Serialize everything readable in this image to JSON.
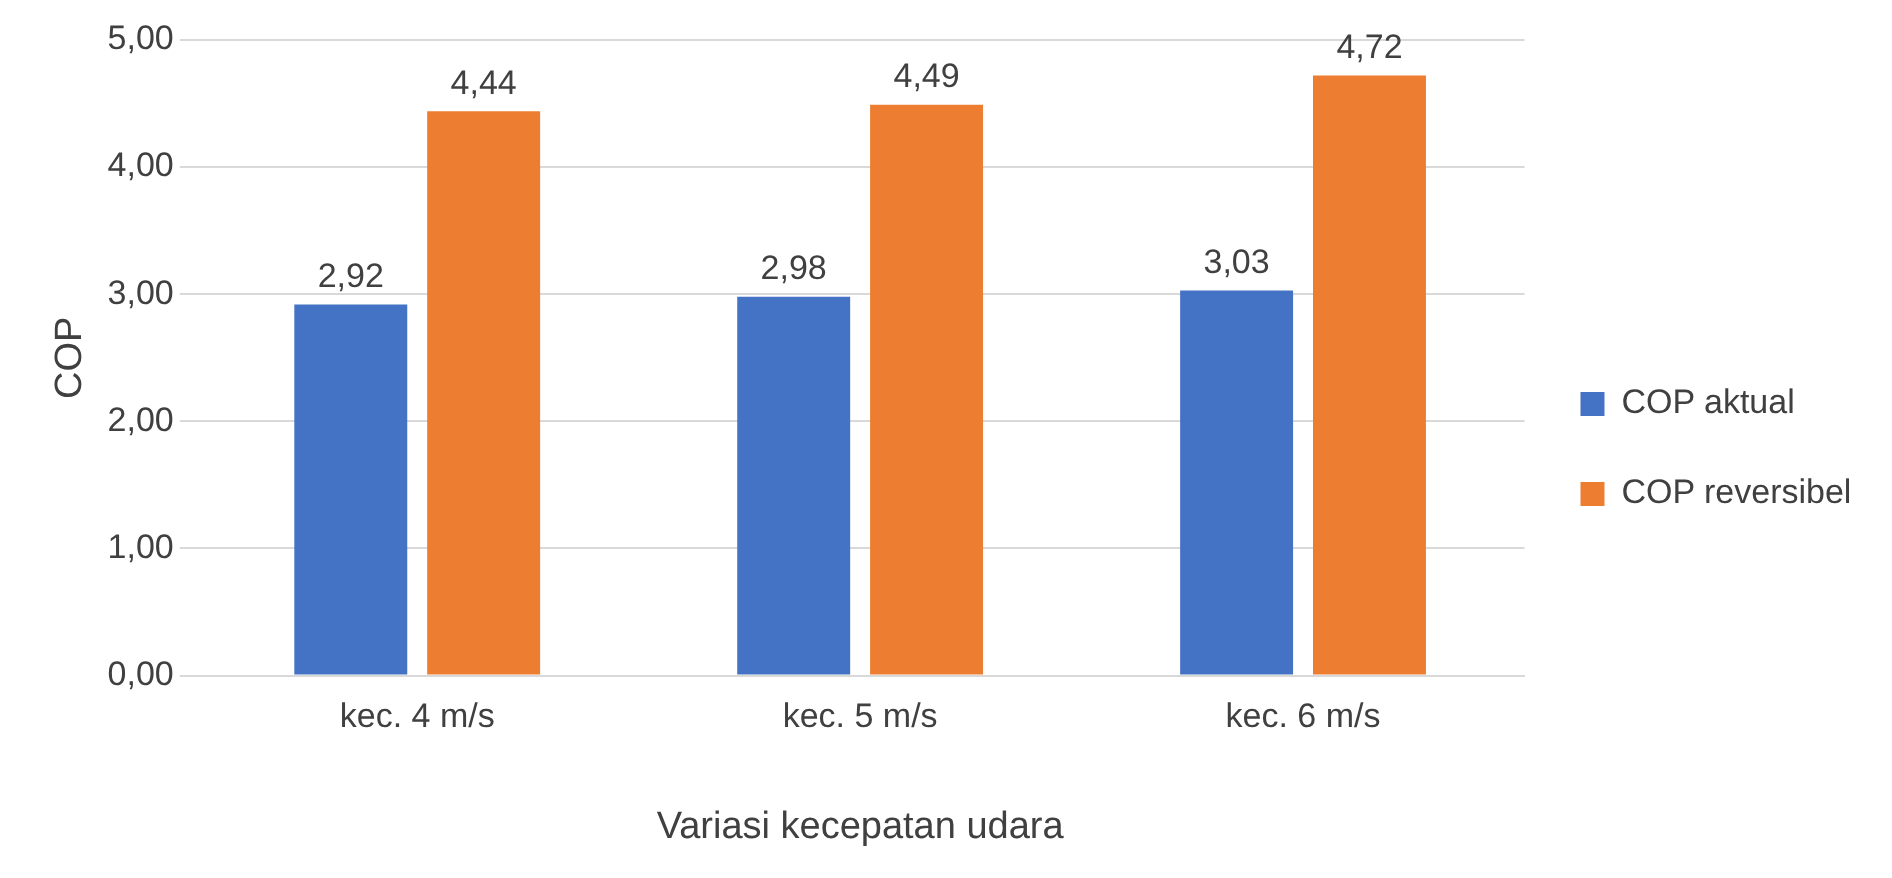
{
  "chart_data": {
    "type": "bar",
    "xlabel": "Variasi kecepatan udara",
    "ylabel": "COP",
    "categories": [
      "kec. 4 m/s",
      "kec. 5 m/s",
      "kec. 6 m/s"
    ],
    "series": [
      {
        "name": "COP aktual",
        "color": "#4472c4",
        "values": [
          2.92,
          2.98,
          3.03
        ],
        "value_labels": [
          "2,92",
          "2,98",
          "3,03"
        ]
      },
      {
        "name": "COP reversibel",
        "color": "#ed7d31",
        "values": [
          4.44,
          4.49,
          4.72
        ],
        "value_labels": [
          "4,44",
          "4,49",
          "4,72"
        ]
      }
    ],
    "ylim": [
      0,
      5
    ],
    "yticks": [
      {
        "value": 0,
        "label": "0,00"
      },
      {
        "value": 1,
        "label": "1,00"
      },
      {
        "value": 2,
        "label": "2,00"
      },
      {
        "value": 3,
        "label": "3,00"
      },
      {
        "value": 4,
        "label": "4,00"
      },
      {
        "value": 5,
        "label": "5,00"
      }
    ],
    "grid": "y",
    "legend": "right"
  }
}
